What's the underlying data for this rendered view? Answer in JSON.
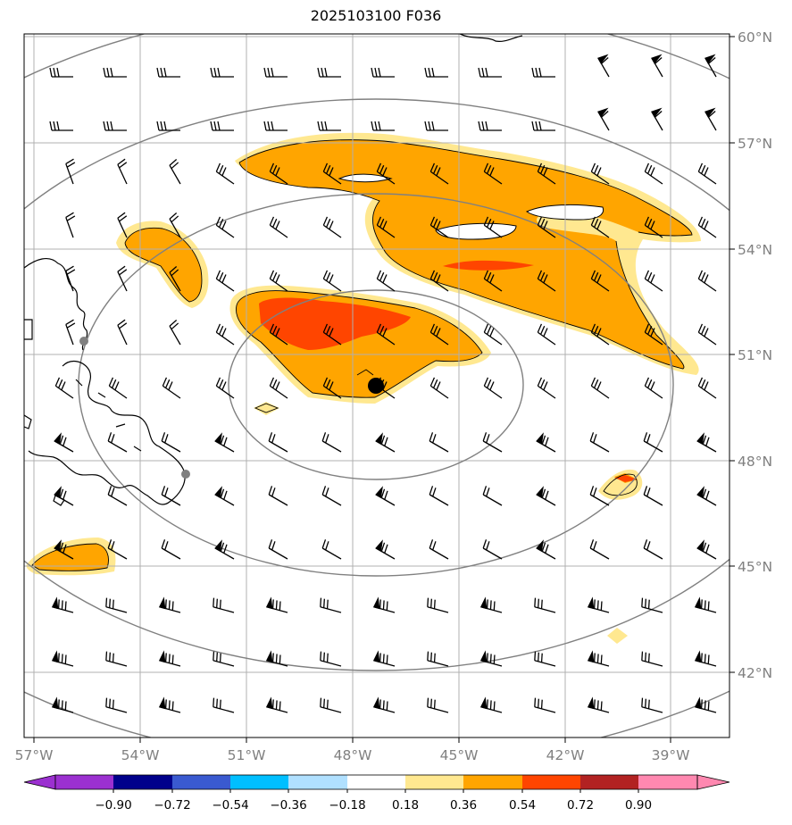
{
  "map": {
    "title": "2025103100 F036",
    "lon_ticks": [
      "57°W",
      "54°W",
      "51°W",
      "48°W",
      "45°W",
      "42°W",
      "39°W"
    ],
    "lat_ticks": [
      "60°N",
      "57°N",
      "54°N",
      "51°N",
      "48°N",
      "45°N",
      "42°N"
    ],
    "lon_range": [
      -57.3,
      -37.3
    ],
    "lat_range": [
      40.3,
      60.3
    ],
    "marker": {
      "lon": -47.3,
      "lat": 50.1,
      "color": "#000000"
    },
    "cities": [
      {
        "lon": -55.6,
        "lat": 51.3
      },
      {
        "lon": -52.7,
        "lat": 47.6
      }
    ],
    "range_rings": "grey concentric circles centred on marker"
  },
  "colorbar": {
    "ticks": [
      "−0.90",
      "−0.72",
      "−0.54",
      "−0.36",
      "−0.18",
      "0.18",
      "0.36",
      "0.54",
      "0.72",
      "0.90"
    ],
    "colors": [
      "#9b30d0",
      "#00008b",
      "#3a5ad0",
      "#00bfff",
      "#b0e0ff",
      "#ffffff",
      "#ffe890",
      "#ffa500",
      "#ff4500",
      "#b22222",
      "#ff88b0"
    ]
  },
  "legend_colors": {
    "light": "#ffe890",
    "orange": "#ffa500",
    "red": "#ff4500",
    "grid": "#b0b0b0",
    "ring": "#808080"
  }
}
